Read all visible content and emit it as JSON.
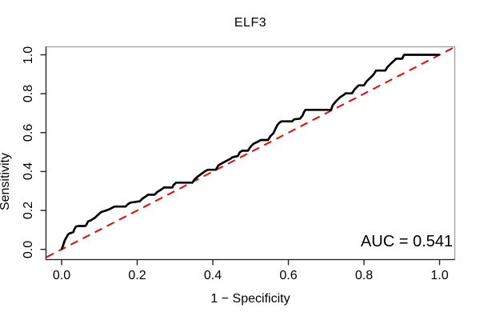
{
  "chart_data": {
    "type": "line",
    "title": "ELF3",
    "xlabel": "1 − Specificity",
    "ylabel": "Sensitivity",
    "annotation": "AUC = 0.541",
    "auc": 0.541,
    "x_tick_labels": [
      "0.0",
      "0.2",
      "0.4",
      "0.6",
      "0.8",
      "1.0"
    ],
    "y_tick_labels": [
      "0.0",
      "0.2",
      "0.4",
      "0.6",
      "0.8",
      "1.0"
    ],
    "x_ticks": [
      0.0,
      0.2,
      0.4,
      0.6,
      0.8,
      1.0
    ],
    "y_ticks": [
      0.0,
      0.2,
      0.4,
      0.6,
      0.8,
      1.0
    ],
    "xlim": [
      -0.04,
      1.04
    ],
    "ylim": [
      -0.04,
      1.04
    ],
    "grid": false,
    "legend": "none",
    "colors": {
      "roc_curve": "#000000",
      "chance_line": "#FF0000",
      "box": "#999999",
      "axis": "#222222",
      "background": "#FFFFFF"
    },
    "series": [
      {
        "name": "ROC curve",
        "style": "solid",
        "points": [
          [
            0.0,
            0.0
          ],
          [
            0.004,
            0.02
          ],
          [
            0.008,
            0.045
          ],
          [
            0.013,
            0.062
          ],
          [
            0.017,
            0.076
          ],
          [
            0.021,
            0.082
          ],
          [
            0.031,
            0.089
          ],
          [
            0.034,
            0.105
          ],
          [
            0.038,
            0.117
          ],
          [
            0.044,
            0.12
          ],
          [
            0.063,
            0.12
          ],
          [
            0.067,
            0.132
          ],
          [
            0.07,
            0.144
          ],
          [
            0.078,
            0.15
          ],
          [
            0.088,
            0.162
          ],
          [
            0.095,
            0.175
          ],
          [
            0.101,
            0.186
          ],
          [
            0.105,
            0.192
          ],
          [
            0.118,
            0.2
          ],
          [
            0.127,
            0.207
          ],
          [
            0.133,
            0.213
          ],
          [
            0.14,
            0.22
          ],
          [
            0.169,
            0.22
          ],
          [
            0.176,
            0.233
          ],
          [
            0.182,
            0.24
          ],
          [
            0.207,
            0.247
          ],
          [
            0.214,
            0.261
          ],
          [
            0.224,
            0.274
          ],
          [
            0.229,
            0.281
          ],
          [
            0.246,
            0.281
          ],
          [
            0.253,
            0.295
          ],
          [
            0.264,
            0.308
          ],
          [
            0.271,
            0.318
          ],
          [
            0.293,
            0.318
          ],
          [
            0.296,
            0.33
          ],
          [
            0.303,
            0.343
          ],
          [
            0.346,
            0.343
          ],
          [
            0.352,
            0.36
          ],
          [
            0.36,
            0.374
          ],
          [
            0.37,
            0.388
          ],
          [
            0.38,
            0.402
          ],
          [
            0.387,
            0.409
          ],
          [
            0.408,
            0.409
          ],
          [
            0.415,
            0.432
          ],
          [
            0.424,
            0.442
          ],
          [
            0.433,
            0.452
          ],
          [
            0.447,
            0.466
          ],
          [
            0.451,
            0.473
          ],
          [
            0.466,
            0.48
          ],
          [
            0.472,
            0.5
          ],
          [
            0.478,
            0.507
          ],
          [
            0.493,
            0.507
          ],
          [
            0.5,
            0.528
          ],
          [
            0.507,
            0.542
          ],
          [
            0.521,
            0.555
          ],
          [
            0.527,
            0.562
          ],
          [
            0.546,
            0.562
          ],
          [
            0.553,
            0.583
          ],
          [
            0.56,
            0.596
          ],
          [
            0.566,
            0.62
          ],
          [
            0.571,
            0.64
          ],
          [
            0.577,
            0.652
          ],
          [
            0.582,
            0.658
          ],
          [
            0.61,
            0.658
          ],
          [
            0.615,
            0.668
          ],
          [
            0.631,
            0.672
          ],
          [
            0.638,
            0.69
          ],
          [
            0.641,
            0.705
          ],
          [
            0.645,
            0.717
          ],
          [
            0.713,
            0.717
          ],
          [
            0.717,
            0.74
          ],
          [
            0.726,
            0.761
          ],
          [
            0.736,
            0.781
          ],
          [
            0.747,
            0.795
          ],
          [
            0.751,
            0.802
          ],
          [
            0.768,
            0.802
          ],
          [
            0.775,
            0.822
          ],
          [
            0.782,
            0.836
          ],
          [
            0.786,
            0.843
          ],
          [
            0.8,
            0.843
          ],
          [
            0.807,
            0.864
          ],
          [
            0.818,
            0.884
          ],
          [
            0.825,
            0.898
          ],
          [
            0.832,
            0.919
          ],
          [
            0.856,
            0.919
          ],
          [
            0.863,
            0.939
          ],
          [
            0.874,
            0.96
          ],
          [
            0.88,
            0.971
          ],
          [
            0.885,
            0.98
          ],
          [
            0.901,
            0.98
          ],
          [
            0.906,
            1.0
          ],
          [
            1.0,
            1.0
          ]
        ]
      },
      {
        "name": "chance line",
        "style": "dashed",
        "points": [
          [
            -0.04,
            -0.04
          ],
          [
            1.04,
            1.04
          ]
        ]
      }
    ]
  }
}
